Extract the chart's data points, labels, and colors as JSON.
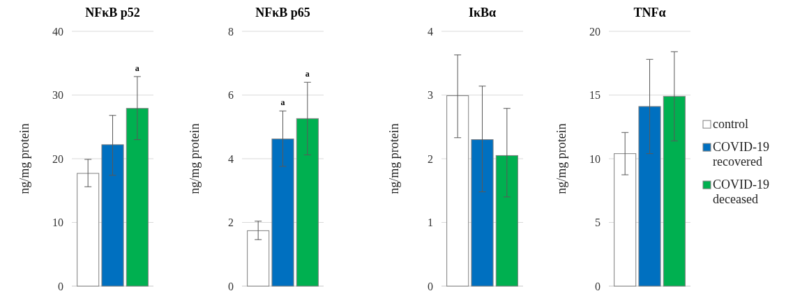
{
  "chart_data": [
    {
      "type": "bar",
      "title": "NFκB p52",
      "ylabel": "ng/mg protein",
      "categories": [
        null
      ],
      "ylim": [
        0,
        40
      ],
      "yticks": [
        0,
        10,
        20,
        30,
        40
      ],
      "grid": "y",
      "legend": false,
      "series": [
        {
          "color": "#ffffff",
          "values": [
            17.7
          ],
          "errors": [
            [
              15.6,
              19.9
            ]
          ]
        },
        {
          "color": "#0070c0",
          "values": [
            22.2
          ],
          "errors": [
            [
              17.4,
              26.8
            ]
          ]
        },
        {
          "color": "#00b050",
          "values": [
            27.9
          ],
          "errors": [
            [
              23.0,
              32.9
            ]
          ]
        }
      ],
      "annotations": [
        "a"
      ]
    },
    {
      "type": "bar",
      "title": "NFκB p65",
      "ylabel": "ng/mg protein",
      "categories": [
        null
      ],
      "ylim": [
        0,
        8
      ],
      "yticks": [
        0,
        2,
        4,
        6,
        8
      ],
      "grid": "y",
      "legend": false,
      "series": [
        {
          "color": "#ffffff",
          "values": [
            1.74
          ],
          "errors": [
            [
              1.46,
              2.04
            ]
          ]
        },
        {
          "color": "#0070c0",
          "values": [
            4.62
          ],
          "errors": [
            [
              3.76,
              5.5
            ]
          ]
        },
        {
          "color": "#00b050",
          "values": [
            5.26
          ],
          "errors": [
            [
              4.12,
              6.4
            ]
          ]
        }
      ],
      "annotations": [
        "a",
        "a"
      ]
    },
    {
      "type": "bar",
      "title": "IκBα",
      "ylabel": "ng/mg protein",
      "categories": [
        null
      ],
      "ylim": [
        0,
        4
      ],
      "yticks": [
        0,
        1,
        2,
        3,
        4
      ],
      "grid": "y",
      "legend": false,
      "series": [
        {
          "color": "#ffffff",
          "values": [
            2.99
          ],
          "errors": [
            [
              2.33,
              3.63
            ]
          ]
        },
        {
          "color": "#0070c0",
          "values": [
            2.3
          ],
          "errors": [
            [
              1.48,
              3.14
            ]
          ]
        },
        {
          "color": "#00b050",
          "values": [
            2.05
          ],
          "errors": [
            [
              1.4,
              2.79
            ]
          ]
        }
      ]
    },
    {
      "type": "bar",
      "title": "TNFα",
      "ylabel": "ng/mg protein",
      "categories": [
        null
      ],
      "ylim": [
        0,
        20
      ],
      "yticks": [
        0,
        5,
        10,
        15,
        20
      ],
      "grid": "y",
      "legend": "right",
      "series": [
        {
          "name": "control",
          "color": "#ffffff",
          "values": [
            10.4
          ],
          "errors": [
            [
              8.74,
              12.06
            ]
          ]
        },
        {
          "name": "COVID-19 recovered",
          "color": "#0070c0",
          "values": [
            14.1
          ],
          "errors": [
            [
              10.4,
              17.8
            ]
          ]
        },
        {
          "name": "COVID-19 deceased",
          "color": "#00b050",
          "values": [
            14.9
          ],
          "errors": [
            [
              11.4,
              18.4
            ]
          ]
        }
      ]
    }
  ]
}
